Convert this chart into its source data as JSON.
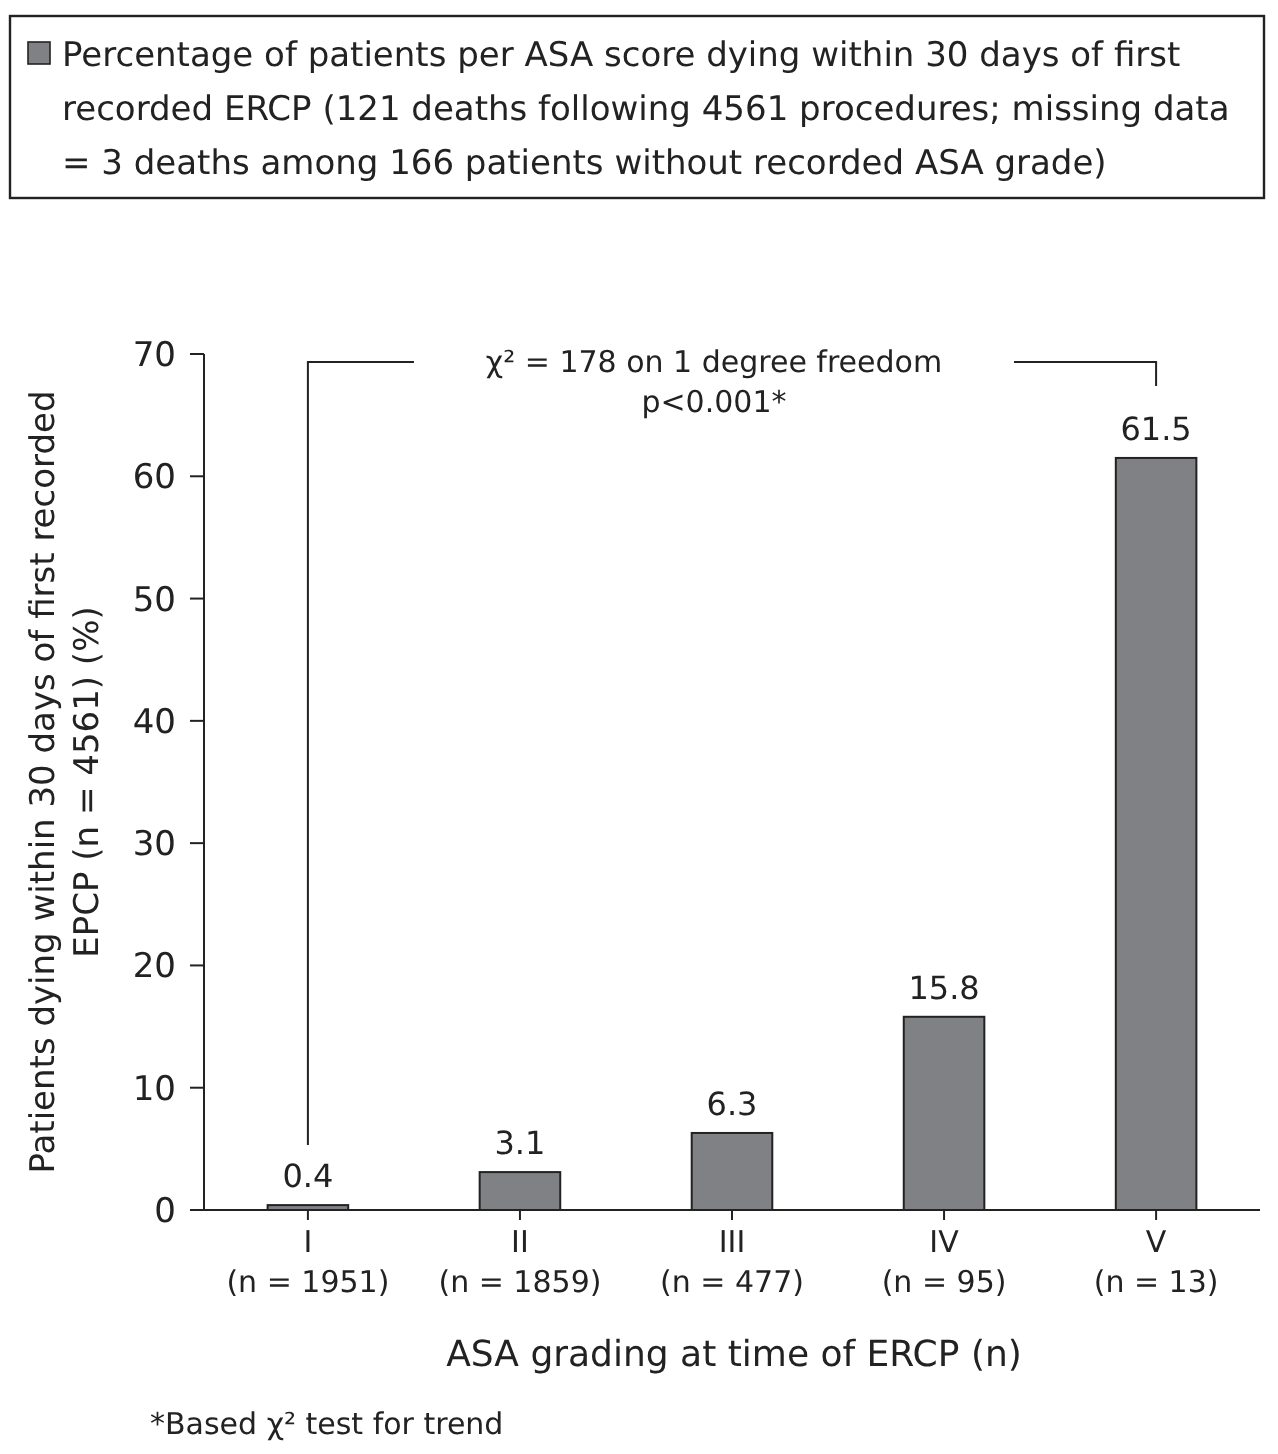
{
  "chart_data": {
    "type": "bar",
    "xlabel": "ASA grading at time of ERCP (n)",
    "ylabel": "Patients dying within 30 days of first recorded EPCP (n = 4561) (%)",
    "categories": [
      "I\n(n = 1951)",
      "II\n(n = 1859)",
      "III\n(n = 477)",
      "IV\n(n = 95)",
      "V\n(n = 13)"
    ],
    "series": [
      {
        "name": "Percentage of patients per ASA score dying within 30 days of first recorded ERCP (121 deaths following 4561 procedures; missing data = 3 deaths among 166 patients without recorded ASA grade)",
        "color": "#808184",
        "values": [
          0.4,
          3.1,
          6.3,
          15.8,
          61.5
        ]
      }
    ],
    "ylim": [
      0,
      70
    ],
    "yticks": [
      0,
      10,
      20,
      30,
      40,
      50,
      60,
      70
    ],
    "data_labels": true,
    "legend": "top",
    "grid": false,
    "annotations": [
      "χ² = 178 on 1 degree freedom",
      "p<0.001*",
      "*Based χ² test for trend"
    ]
  }
}
